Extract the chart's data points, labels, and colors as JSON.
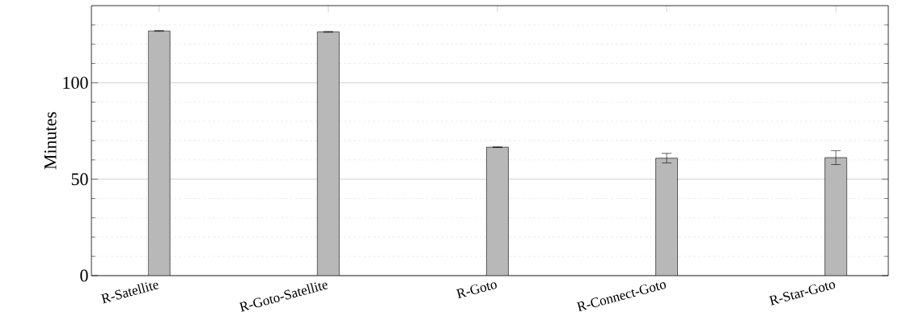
{
  "chart_data": {
    "type": "bar",
    "ylabel": "Minutes",
    "categories": [
      "R-Satellite",
      "R-Goto-Satellite",
      "R-Goto",
      "R-Connect-Goto",
      "R-Star-Goto"
    ],
    "values": [
      126.9,
      126.4,
      66.6,
      60.9,
      61.2
    ],
    "errors": [
      0.2,
      0.2,
      0.2,
      2.5,
      3.6
    ],
    "color": "#b8b8b8",
    "ylim": [
      0,
      140
    ],
    "yticks": [
      0,
      {
        "value": 10,
        "label": null
      },
      {
        "value": 20,
        "label": null
      },
      {
        "value": 30,
        "label": null
      },
      {
        "value": 40,
        "label": null
      },
      50,
      {
        "value": 60,
        "label": null
      },
      {
        "value": 70,
        "label": null
      },
      {
        "value": 80,
        "label": null
      },
      {
        "value": 90,
        "label": null
      },
      100,
      {
        "value": 110,
        "label": null
      },
      {
        "value": 120,
        "label": null
      },
      {
        "value": 130,
        "label": null
      }
    ],
    "grid": "y"
  }
}
